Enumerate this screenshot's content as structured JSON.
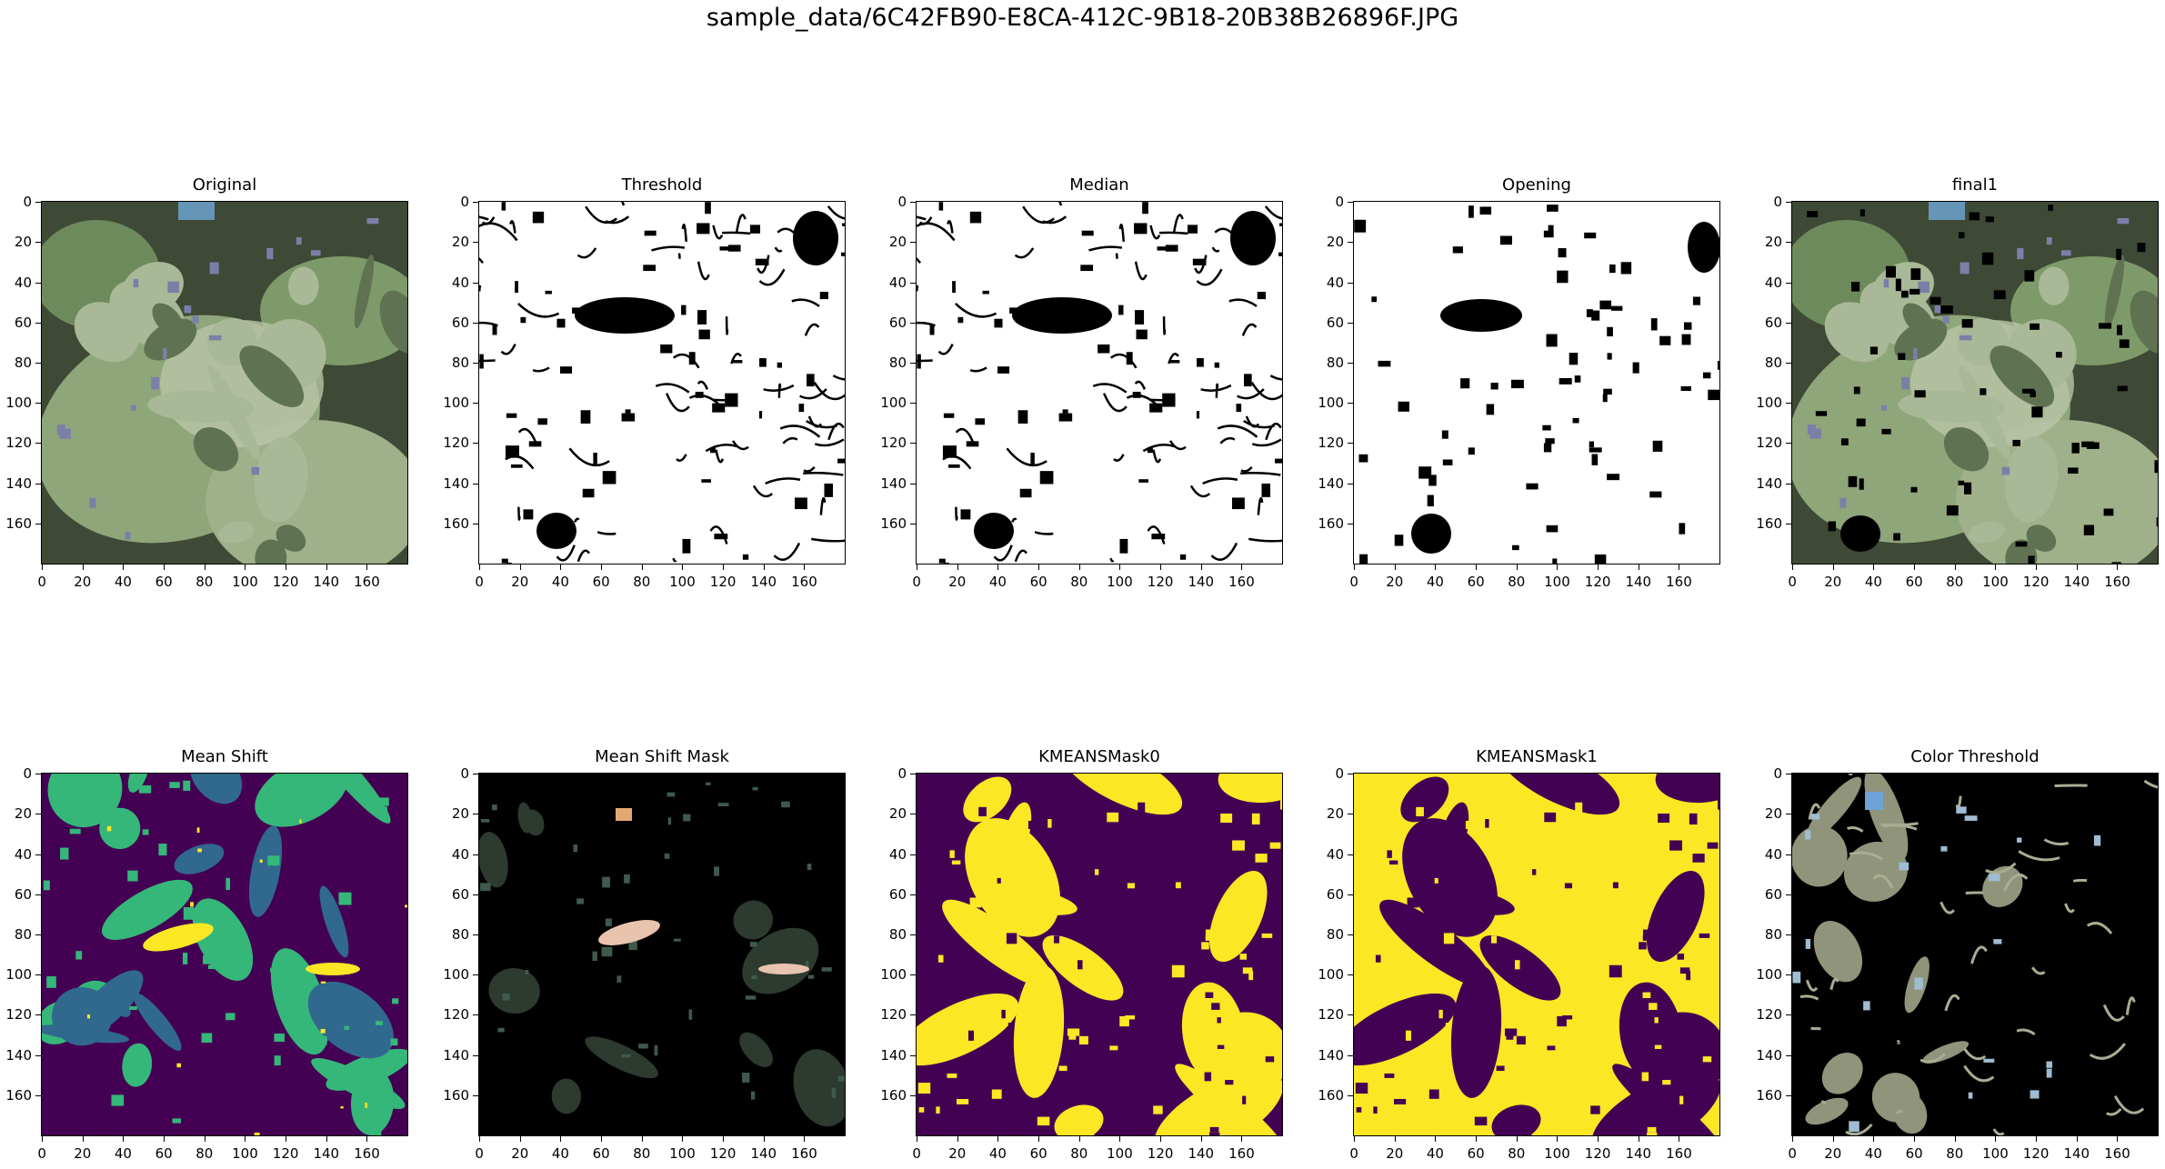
{
  "suptitle": "sample_data/6C42FB90-E8CA-412C-9B18-20B38B26896F.JPG",
  "axis": {
    "xticks": [
      "0",
      "20",
      "40",
      "60",
      "80",
      "100",
      "120",
      "140",
      "160"
    ],
    "yticks": [
      "0",
      "20",
      "40",
      "60",
      "80",
      "100",
      "120",
      "140",
      "160"
    ],
    "range": [
      0,
      180
    ]
  },
  "panels": [
    {
      "title": "Original",
      "kind": "photo"
    },
    {
      "title": "Threshold",
      "kind": "binary"
    },
    {
      "title": "Median",
      "kind": "binary"
    },
    {
      "title": "Opening",
      "kind": "opening"
    },
    {
      "title": "final1",
      "kind": "photo_holes"
    },
    {
      "title": "Mean Shift",
      "kind": "meanshift"
    },
    {
      "title": "Mean Shift Mask",
      "kind": "dark_mask"
    },
    {
      "title": "KMEANSMask0",
      "kind": "kmeans0"
    },
    {
      "title": "KMEANSMask1",
      "kind": "kmeans1"
    },
    {
      "title": "Color Threshold",
      "kind": "color_thresh"
    }
  ],
  "colors": {
    "viridis_purple": "#440154",
    "viridis_yellow": "#fde725",
    "viridis_teal": "#35b779",
    "viridis_blue": "#31688e",
    "leaf_green": "#8fa57a",
    "leaf_pale": "#b9c6a8",
    "shadow": "#3e4a36"
  }
}
